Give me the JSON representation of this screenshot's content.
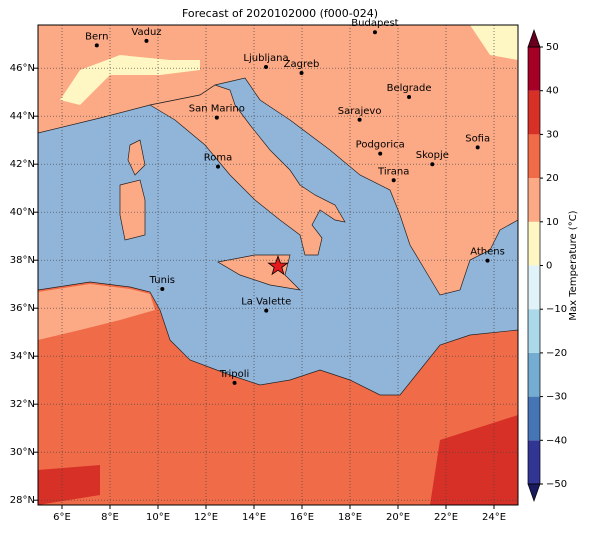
{
  "title": "Forecast of 2020102000 (f000-024)",
  "map": {
    "lon_lim": [
      5,
      25
    ],
    "lat_lim": [
      27.8,
      47.8
    ],
    "lon_ticks": [
      {
        "value": 6,
        "label": "6°E"
      },
      {
        "value": 8,
        "label": "8°E"
      },
      {
        "value": 10,
        "label": "10°E"
      },
      {
        "value": 12,
        "label": "12°E"
      },
      {
        "value": 14,
        "label": "14°E"
      },
      {
        "value": 16,
        "label": "16°E"
      },
      {
        "value": 18,
        "label": "18°E"
      },
      {
        "value": 20,
        "label": "20°E"
      },
      {
        "value": 22,
        "label": "22°E"
      },
      {
        "value": 24,
        "label": "24°E"
      }
    ],
    "lat_ticks": [
      {
        "value": 28,
        "label": "28°N"
      },
      {
        "value": 30,
        "label": "30°N"
      },
      {
        "value": 32,
        "label": "32°N"
      },
      {
        "value": 34,
        "label": "34°N"
      },
      {
        "value": 36,
        "label": "36°N"
      },
      {
        "value": 38,
        "label": "38°N"
      },
      {
        "value": 40,
        "label": "40°N"
      },
      {
        "value": 42,
        "label": "42°N"
      },
      {
        "value": 44,
        "label": "44°N"
      },
      {
        "value": 46,
        "label": "46°N"
      }
    ],
    "grid": true,
    "cities": [
      {
        "name": "Bern",
        "lon": 7.45,
        "lat": 46.95
      },
      {
        "name": "Vaduz",
        "lon": 9.52,
        "lat": 47.14
      },
      {
        "name": "Budapest",
        "lon": 19.04,
        "lat": 47.5
      },
      {
        "name": "Ljubljana",
        "lon": 14.5,
        "lat": 46.05
      },
      {
        "name": "Zagreb",
        "lon": 15.98,
        "lat": 45.8
      },
      {
        "name": "Belgrade",
        "lon": 20.46,
        "lat": 44.8
      },
      {
        "name": "Sarajevo",
        "lon": 18.4,
        "lat": 43.85
      },
      {
        "name": "San Marino",
        "lon": 12.45,
        "lat": 43.94
      },
      {
        "name": "Podgorica",
        "lon": 19.26,
        "lat": 42.44
      },
      {
        "name": "Sofia",
        "lon": 23.32,
        "lat": 42.7
      },
      {
        "name": "Skopje",
        "lon": 21.43,
        "lat": 42.0
      },
      {
        "name": "Roma",
        "lon": 12.5,
        "lat": 41.9
      },
      {
        "name": "Tirana",
        "lon": 19.82,
        "lat": 41.33
      },
      {
        "name": "Athens",
        "lon": 23.73,
        "lat": 37.98
      },
      {
        "name": "Tunis",
        "lon": 10.18,
        "lat": 36.8
      },
      {
        "name": "La Valette",
        "lon": 14.51,
        "lat": 35.9
      },
      {
        "name": "Tripoli",
        "lon": 13.19,
        "lat": 32.89
      }
    ],
    "marker": {
      "lon": 15.0,
      "lat": 37.75,
      "color": "#e41a1c"
    }
  },
  "colorbar": {
    "label": "Max Temperature (°C)",
    "lim": [
      -50,
      50
    ],
    "levels": [
      -50,
      -40,
      -30,
      -20,
      -10,
      0,
      10,
      20,
      30,
      40,
      50
    ],
    "colors": [
      "#313695",
      "#4575b4",
      "#74add1",
      "#abd9e9",
      "#e0f3f8",
      "#fef7c3",
      "#fca985",
      "#f06b48",
      "#d73027",
      "#a50026"
    ],
    "under_color": "#1a1a5e",
    "over_color": "#67001f",
    "ticks": [
      {
        "value": -50,
        "label": "−50"
      },
      {
        "value": -40,
        "label": "−40"
      },
      {
        "value": -30,
        "label": "−30"
      },
      {
        "value": -20,
        "label": "−20"
      },
      {
        "value": -10,
        "label": "−10"
      },
      0,
      10,
      20,
      30,
      40,
      50
    ]
  }
}
